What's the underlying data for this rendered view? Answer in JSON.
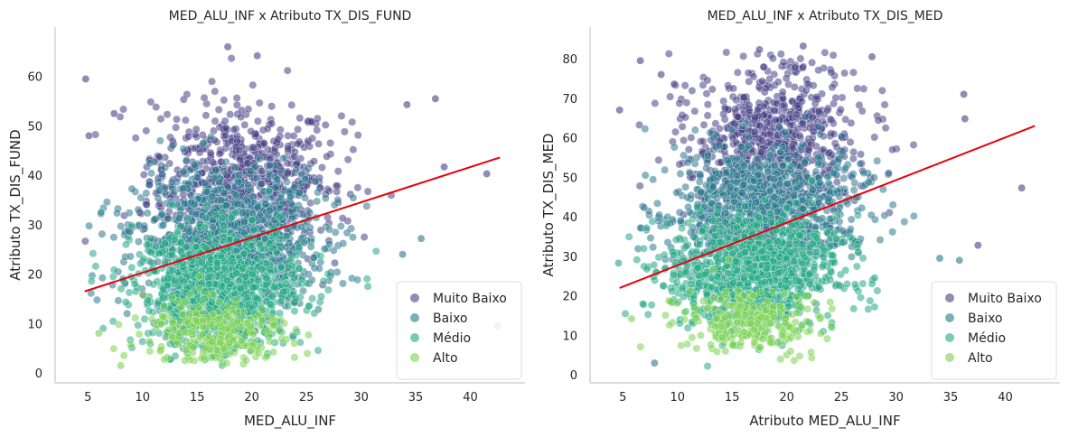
{
  "chart_data": [
    {
      "type": "scatter",
      "title": "MED_ALU_INF x Atributo TX_DIS_FUND",
      "xlabel": "MED_ALU_INF",
      "ylabel": "Atributo TX_DIS_FUND",
      "xlim": [
        2,
        45
      ],
      "ylim": [
        -2,
        70
      ],
      "xticks": [
        5,
        10,
        15,
        20,
        25,
        30,
        35,
        40
      ],
      "yticks": [
        0,
        10,
        20,
        30,
        40,
        50,
        60
      ],
      "grid": false,
      "legend_position": "bottom-right",
      "legend": [
        "Muito Baixo",
        "Baixo",
        "Médio",
        "Alto"
      ],
      "colors": {
        "Muito Baixo": "#453f85",
        "Baixo": "#2a788e",
        "Médio": "#22a884",
        "Alto": "#7ad151",
        "trend": "#e8000b"
      },
      "trend_line": {
        "x": [
          4.7,
          42.7
        ],
        "y": [
          16.5,
          43.6
        ]
      },
      "series": [
        {
          "name": "Muito Baixo",
          "center_x": 19,
          "center_y": 39,
          "spread_x": 4.2,
          "spread_y": 8,
          "count": 700
        },
        {
          "name": "Baixo",
          "center_x": 18,
          "center_y": 27,
          "spread_x": 4.3,
          "spread_y": 7,
          "count": 1000
        },
        {
          "name": "Médio",
          "center_x": 17,
          "center_y": 17,
          "spread_x": 3.8,
          "spread_y": 6,
          "count": 1000
        },
        {
          "name": "Alto",
          "center_x": 16.5,
          "center_y": 8,
          "spread_x": 3.2,
          "spread_y": 3.5,
          "count": 260
        }
      ],
      "outliers": [
        {
          "x": 4.8,
          "y": 59.5,
          "series": "Muito Baixo"
        },
        {
          "x": 5.1,
          "y": 48,
          "series": "Muito Baixo"
        },
        {
          "x": 7.4,
          "y": 52.5,
          "series": "Muito Baixo"
        },
        {
          "x": 36.8,
          "y": 55.5,
          "series": "Muito Baixo"
        },
        {
          "x": 37.6,
          "y": 41.7,
          "series": "Muito Baixo"
        },
        {
          "x": 41.5,
          "y": 40.3,
          "series": "Muito Baixo"
        },
        {
          "x": 6.2,
          "y": 32.5,
          "series": "Médio"
        },
        {
          "x": 6.0,
          "y": 8.0,
          "series": "Alto"
        },
        {
          "x": 8.0,
          "y": 1.5,
          "series": "Alto"
        },
        {
          "x": 34.2,
          "y": 54.3,
          "series": "Muito Baixo"
        },
        {
          "x": 17.8,
          "y": 66,
          "series": "Muito Baixo"
        },
        {
          "x": 20.5,
          "y": 64.2,
          "series": "Muito Baixo"
        },
        {
          "x": 42.5,
          "y": 9.5,
          "series": "Médio"
        },
        {
          "x": 35.5,
          "y": 27.2,
          "series": "Baixo"
        },
        {
          "x": 33.8,
          "y": 24.0,
          "series": "Baixo"
        }
      ]
    },
    {
      "type": "scatter",
      "title": "MED_ALU_INF x Atributo TX_DIS_MED",
      "xlabel": "Atributo MED_ALU_INF",
      "ylabel": "Atributo TX_DIS_MED",
      "xlim": [
        2,
        45
      ],
      "ylim": [
        -2,
        88
      ],
      "xticks": [
        5,
        10,
        15,
        20,
        25,
        30,
        35,
        40
      ],
      "yticks": [
        0,
        10,
        20,
        30,
        40,
        50,
        60,
        70,
        80
      ],
      "grid": false,
      "legend_position": "bottom-right",
      "legend": [
        "Muito Baixo",
        "Baixo",
        "Médio",
        "Alto"
      ],
      "colors": {
        "Muito Baixo": "#453f85",
        "Baixo": "#2a788e",
        "Médio": "#22a884",
        "Alto": "#7ad151",
        "trend": "#e8000b"
      },
      "trend_line": {
        "x": [
          4.7,
          42.7
        ],
        "y": [
          22.0,
          63.0
        ]
      },
      "series": [
        {
          "name": "Muito Baixo",
          "center_x": 19,
          "center_y": 60,
          "spread_x": 4.2,
          "spread_y": 9,
          "count": 700
        },
        {
          "name": "Baixo",
          "center_x": 18,
          "center_y": 42,
          "spread_x": 4.3,
          "spread_y": 8,
          "count": 1000
        },
        {
          "name": "Médio",
          "center_x": 17,
          "center_y": 26,
          "spread_x": 3.8,
          "spread_y": 7,
          "count": 1000
        },
        {
          "name": "Alto",
          "center_x": 16.5,
          "center_y": 14,
          "spread_x": 3.2,
          "spread_y": 4,
          "count": 260
        }
      ],
      "outliers": [
        {
          "x": 4.7,
          "y": 67,
          "series": "Muito Baixo"
        },
        {
          "x": 6.6,
          "y": 79.5,
          "series": "Muito Baixo"
        },
        {
          "x": 8.5,
          "y": 76,
          "series": "Muito Baixo"
        },
        {
          "x": 36.2,
          "y": 71,
          "series": "Muito Baixo"
        },
        {
          "x": 36.3,
          "y": 64.8,
          "series": "Muito Baixo"
        },
        {
          "x": 41.5,
          "y": 47.3,
          "series": "Muito Baixo"
        },
        {
          "x": 4.6,
          "y": 28.3,
          "series": "Médio"
        },
        {
          "x": 5.8,
          "y": 14.2,
          "series": "Alto"
        },
        {
          "x": 7.9,
          "y": 3.0,
          "series": "Baixo"
        },
        {
          "x": 37.5,
          "y": 32.8,
          "series": "Muito Baixo"
        },
        {
          "x": 21.5,
          "y": 83.2,
          "series": "Muito Baixo"
        },
        {
          "x": 17.5,
          "y": 82.3,
          "series": "Muito Baixo"
        },
        {
          "x": 35.8,
          "y": 29.0,
          "series": "Baixo"
        },
        {
          "x": 34.0,
          "y": 29.5,
          "series": "Baixo"
        },
        {
          "x": 27.8,
          "y": 80.5,
          "series": "Muito Baixo"
        }
      ]
    }
  ]
}
